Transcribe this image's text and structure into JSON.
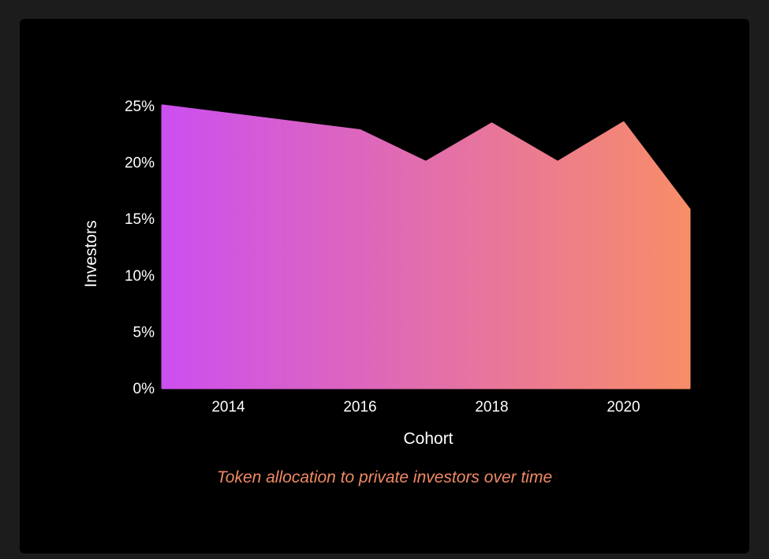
{
  "chart_data": {
    "type": "area",
    "title": "",
    "caption": "Token allocation to private investors over time",
    "xlabel": "Cohort",
    "ylabel": "Investors",
    "x": [
      2013,
      2016,
      2017,
      2018,
      2019,
      2020,
      2021
    ],
    "series": [
      {
        "values": [
          25.0,
          22.8,
          20.0,
          23.4,
          20.0,
          23.5,
          15.8
        ]
      }
    ],
    "xlim": [
      2013,
      2021
    ],
    "ylim": [
      0,
      25
    ],
    "x_ticks": [
      2014,
      2016,
      2018,
      2020
    ],
    "x_tick_labels": [
      "2014",
      "2016",
      "2018",
      "2020"
    ],
    "y_ticks": [
      0,
      5,
      10,
      15,
      20,
      25
    ],
    "y_tick_labels": [
      "0%",
      "5%",
      "10%",
      "15%",
      "20%",
      "25%"
    ],
    "grid": false,
    "legend": "none",
    "colors": {
      "gradient_start": "#cc4ff0",
      "gradient_end": "#f88d68",
      "caption": "#f08a64",
      "text": "#ffffff",
      "background": "#000000"
    }
  }
}
